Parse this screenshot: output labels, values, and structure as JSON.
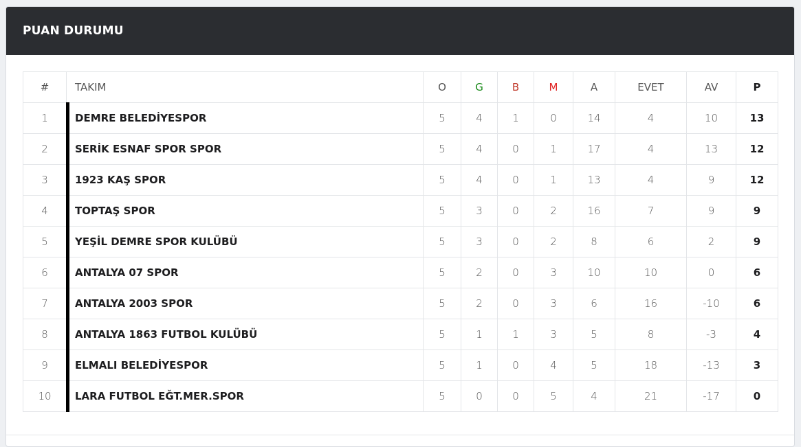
{
  "header": {
    "title": "PUAN DURUMU"
  },
  "colors": {
    "header_bg": "#2b2d31",
    "won": "#1a8a1a",
    "drawn": "#c0392b",
    "lost": "#e02020"
  },
  "columns": [
    {
      "key": "rank",
      "label": "#"
    },
    {
      "key": "team",
      "label": "TAKIM"
    },
    {
      "key": "played",
      "label": "O"
    },
    {
      "key": "won",
      "label": "G"
    },
    {
      "key": "drawn",
      "label": "B"
    },
    {
      "key": "lost",
      "label": "M"
    },
    {
      "key": "gf",
      "label": "A"
    },
    {
      "key": "ga",
      "label": "EVET"
    },
    {
      "key": "gd",
      "label": "AV"
    },
    {
      "key": "pts",
      "label": "P"
    }
  ],
  "rows": [
    {
      "rank": "1",
      "team": "DEMRE BELEDİYESPOR",
      "played": "5",
      "won": "4",
      "drawn": "1",
      "lost": "0",
      "gf": "14",
      "ga": "4",
      "gd": "10",
      "pts": "13"
    },
    {
      "rank": "2",
      "team": "SERİK ESNAF SPOR SPOR",
      "played": "5",
      "won": "4",
      "drawn": "0",
      "lost": "1",
      "gf": "17",
      "ga": "4",
      "gd": "13",
      "pts": "12"
    },
    {
      "rank": "3",
      "team": "1923 KAŞ SPOR",
      "played": "5",
      "won": "4",
      "drawn": "0",
      "lost": "1",
      "gf": "13",
      "ga": "4",
      "gd": "9",
      "pts": "12"
    },
    {
      "rank": "4",
      "team": "TOPTAŞ SPOR",
      "played": "5",
      "won": "3",
      "drawn": "0",
      "lost": "2",
      "gf": "16",
      "ga": "7",
      "gd": "9",
      "pts": "9"
    },
    {
      "rank": "5",
      "team": "YEŞİL DEMRE SPOR KULÜBÜ",
      "played": "5",
      "won": "3",
      "drawn": "0",
      "lost": "2",
      "gf": "8",
      "ga": "6",
      "gd": "2",
      "pts": "9"
    },
    {
      "rank": "6",
      "team": "ANTALYA 07 SPOR",
      "played": "5",
      "won": "2",
      "drawn": "0",
      "lost": "3",
      "gf": "10",
      "ga": "10",
      "gd": "0",
      "pts": "6"
    },
    {
      "rank": "7",
      "team": "ANTALYA 2003 SPOR",
      "played": "5",
      "won": "2",
      "drawn": "0",
      "lost": "3",
      "gf": "6",
      "ga": "16",
      "gd": "-10",
      "pts": "6"
    },
    {
      "rank": "8",
      "team": "ANTALYA 1863 FUTBOL KULÜBÜ",
      "played": "5",
      "won": "1",
      "drawn": "1",
      "lost": "3",
      "gf": "5",
      "ga": "8",
      "gd": "-3",
      "pts": "4"
    },
    {
      "rank": "9",
      "team": "ELMALI BELEDİYESPOR",
      "played": "5",
      "won": "1",
      "drawn": "0",
      "lost": "4",
      "gf": "5",
      "ga": "18",
      "gd": "-13",
      "pts": "3"
    },
    {
      "rank": "10",
      "team": "LARA FUTBOL EĞT.MER.SPOR",
      "played": "5",
      "won": "0",
      "drawn": "0",
      "lost": "5",
      "gf": "4",
      "ga": "21",
      "gd": "-17",
      "pts": "0"
    }
  ]
}
